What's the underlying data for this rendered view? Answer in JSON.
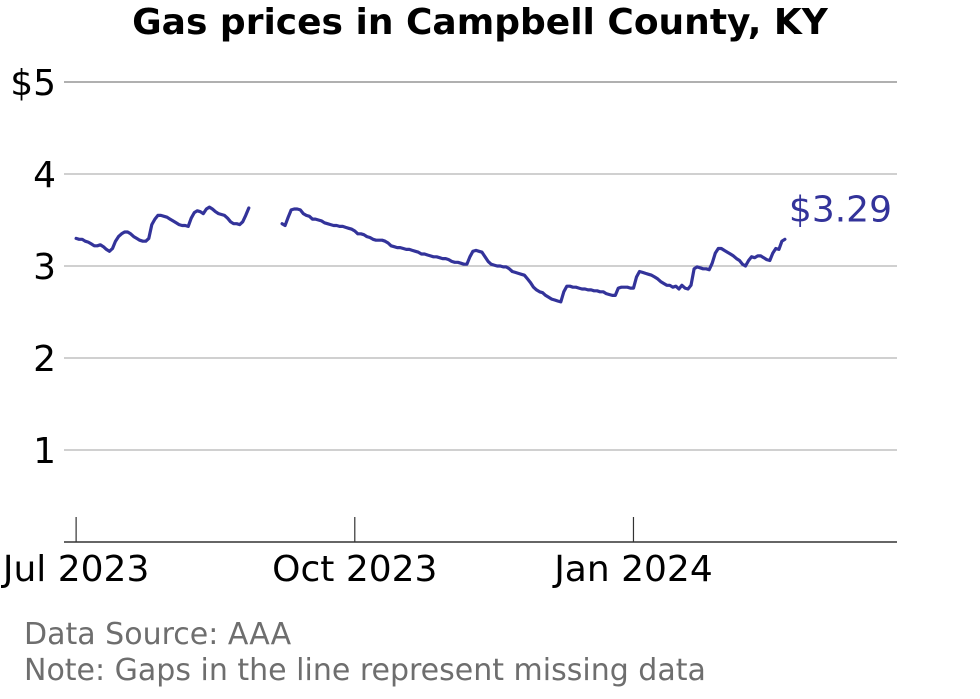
{
  "title": "Gas prices in Campbell County, KY",
  "footer": {
    "source": "Data Source: AAA",
    "note": "Note: Gaps in the line represent missing data"
  },
  "colors": {
    "line": "#33339a",
    "grid": "#b3b3b3",
    "axis": "#333333",
    "footer": "#6e6e6e"
  },
  "chart_data": {
    "type": "line",
    "title": "Gas prices in Campbell County, KY",
    "xlabel": "",
    "ylabel": "",
    "xlim": [
      "2023-06-27",
      "2024-03-28"
    ],
    "ylim": [
      0,
      5
    ],
    "y_ticks": [
      1,
      2,
      3,
      4,
      5
    ],
    "y_tick_labels": [
      "1",
      "2",
      "3",
      "4",
      "$5"
    ],
    "x_ticks": [
      "2023-07-01",
      "2023-10-01",
      "2024-01-01"
    ],
    "x_tick_labels": [
      "Jul 2023",
      "Oct 2023",
      "Jan 2024"
    ],
    "grid": true,
    "end_label": "$3.29",
    "series": [
      {
        "segments": [
          [
            [
              "2023-07-01",
              3.3
            ],
            [
              "2023-07-02",
              3.29
            ],
            [
              "2023-07-03",
              3.29
            ],
            [
              "2023-07-04",
              3.27
            ],
            [
              "2023-07-05",
              3.26
            ],
            [
              "2023-07-06",
              3.24
            ],
            [
              "2023-07-07",
              3.22
            ],
            [
              "2023-07-08",
              3.22
            ],
            [
              "2023-07-09",
              3.23
            ],
            [
              "2023-07-10",
              3.21
            ],
            [
              "2023-07-11",
              3.18
            ],
            [
              "2023-07-12",
              3.16
            ],
            [
              "2023-07-13",
              3.19
            ],
            [
              "2023-07-14",
              3.27
            ],
            [
              "2023-07-15",
              3.32
            ],
            [
              "2023-07-16",
              3.35
            ],
            [
              "2023-07-17",
              3.37
            ],
            [
              "2023-07-18",
              3.37
            ],
            [
              "2023-07-19",
              3.35
            ],
            [
              "2023-07-20",
              3.32
            ],
            [
              "2023-07-21",
              3.3
            ],
            [
              "2023-07-22",
              3.28
            ],
            [
              "2023-07-23",
              3.27
            ],
            [
              "2023-07-24",
              3.27
            ],
            [
              "2023-07-25",
              3.3
            ],
            [
              "2023-07-26",
              3.45
            ],
            [
              "2023-07-27",
              3.51
            ],
            [
              "2023-07-28",
              3.55
            ],
            [
              "2023-07-29",
              3.55
            ],
            [
              "2023-07-30",
              3.54
            ],
            [
              "2023-07-31",
              3.53
            ],
            [
              "2023-08-01",
              3.51
            ],
            [
              "2023-08-02",
              3.49
            ],
            [
              "2023-08-03",
              3.47
            ],
            [
              "2023-08-04",
              3.45
            ],
            [
              "2023-08-05",
              3.44
            ],
            [
              "2023-08-06",
              3.44
            ],
            [
              "2023-08-07",
              3.43
            ],
            [
              "2023-08-08",
              3.52
            ],
            [
              "2023-08-09",
              3.58
            ],
            [
              "2023-08-10",
              3.6
            ],
            [
              "2023-08-11",
              3.59
            ],
            [
              "2023-08-12",
              3.57
            ],
            [
              "2023-08-13",
              3.62
            ],
            [
              "2023-08-14",
              3.64
            ],
            [
              "2023-08-15",
              3.62
            ],
            [
              "2023-08-16",
              3.59
            ],
            [
              "2023-08-17",
              3.57
            ],
            [
              "2023-08-18",
              3.56
            ],
            [
              "2023-08-19",
              3.55
            ],
            [
              "2023-08-20",
              3.52
            ],
            [
              "2023-08-21",
              3.48
            ],
            [
              "2023-08-22",
              3.46
            ],
            [
              "2023-08-23",
              3.46
            ],
            [
              "2023-08-24",
              3.45
            ],
            [
              "2023-08-25",
              3.48
            ],
            [
              "2023-08-26",
              3.55
            ],
            [
              "2023-08-27",
              3.63
            ]
          ],
          [
            [
              "2023-09-07",
              3.46
            ],
            [
              "2023-09-08",
              3.44
            ],
            [
              "2023-09-09",
              3.53
            ],
            [
              "2023-09-10",
              3.61
            ],
            [
              "2023-09-11",
              3.62
            ],
            [
              "2023-09-12",
              3.62
            ],
            [
              "2023-09-13",
              3.61
            ],
            [
              "2023-09-14",
              3.57
            ],
            [
              "2023-09-15",
              3.55
            ],
            [
              "2023-09-16",
              3.54
            ],
            [
              "2023-09-17",
              3.51
            ],
            [
              "2023-09-18",
              3.51
            ],
            [
              "2023-09-19",
              3.5
            ],
            [
              "2023-09-20",
              3.49
            ],
            [
              "2023-09-21",
              3.47
            ],
            [
              "2023-09-22",
              3.46
            ],
            [
              "2023-09-23",
              3.45
            ],
            [
              "2023-09-24",
              3.44
            ],
            [
              "2023-09-25",
              3.44
            ],
            [
              "2023-09-26",
              3.43
            ],
            [
              "2023-09-27",
              3.43
            ],
            [
              "2023-09-28",
              3.42
            ],
            [
              "2023-09-29",
              3.41
            ],
            [
              "2023-09-30",
              3.4
            ],
            [
              "2023-10-01",
              3.38
            ],
            [
              "2023-10-02",
              3.35
            ],
            [
              "2023-10-03",
              3.35
            ],
            [
              "2023-10-04",
              3.34
            ],
            [
              "2023-10-05",
              3.32
            ],
            [
              "2023-10-06",
              3.31
            ],
            [
              "2023-10-07",
              3.29
            ],
            [
              "2023-10-08",
              3.28
            ],
            [
              "2023-10-09",
              3.28
            ],
            [
              "2023-10-10",
              3.28
            ],
            [
              "2023-10-11",
              3.27
            ],
            [
              "2023-10-12",
              3.25
            ],
            [
              "2023-10-13",
              3.22
            ],
            [
              "2023-10-14",
              3.21
            ],
            [
              "2023-10-15",
              3.2
            ],
            [
              "2023-10-16",
              3.2
            ],
            [
              "2023-10-17",
              3.19
            ],
            [
              "2023-10-18",
              3.18
            ],
            [
              "2023-10-19",
              3.18
            ],
            [
              "2023-10-20",
              3.17
            ],
            [
              "2023-10-21",
              3.16
            ],
            [
              "2023-10-22",
              3.15
            ],
            [
              "2023-10-23",
              3.13
            ],
            [
              "2023-10-24",
              3.13
            ],
            [
              "2023-10-25",
              3.12
            ],
            [
              "2023-10-26",
              3.11
            ],
            [
              "2023-10-27",
              3.1
            ],
            [
              "2023-10-28",
              3.1
            ],
            [
              "2023-10-29",
              3.09
            ],
            [
              "2023-10-30",
              3.08
            ],
            [
              "2023-10-31",
              3.08
            ],
            [
              "2023-11-01",
              3.07
            ],
            [
              "2023-11-02",
              3.05
            ],
            [
              "2023-11-03",
              3.04
            ],
            [
              "2023-11-04",
              3.04
            ],
            [
              "2023-11-05",
              3.03
            ],
            [
              "2023-11-06",
              3.02
            ],
            [
              "2023-11-07",
              3.02
            ],
            [
              "2023-11-08",
              3.1
            ],
            [
              "2023-11-09",
              3.16
            ],
            [
              "2023-11-10",
              3.17
            ],
            [
              "2023-11-11",
              3.16
            ],
            [
              "2023-11-12",
              3.15
            ],
            [
              "2023-11-13",
              3.1
            ],
            [
              "2023-11-14",
              3.05
            ],
            [
              "2023-11-15",
              3.02
            ],
            [
              "2023-11-16",
              3.01
            ],
            [
              "2023-11-17",
              3.0
            ],
            [
              "2023-11-18",
              3.0
            ],
            [
              "2023-11-19",
              2.99
            ],
            [
              "2023-11-20",
              2.99
            ],
            [
              "2023-11-21",
              2.97
            ],
            [
              "2023-11-22",
              2.94
            ],
            [
              "2023-11-23",
              2.93
            ],
            [
              "2023-11-24",
              2.92
            ],
            [
              "2023-11-25",
              2.91
            ],
            [
              "2023-11-26",
              2.9
            ],
            [
              "2023-11-27",
              2.86
            ],
            [
              "2023-11-28",
              2.82
            ],
            [
              "2023-11-29",
              2.77
            ],
            [
              "2023-11-30",
              2.74
            ],
            [
              "2023-12-01",
              2.72
            ],
            [
              "2023-12-02",
              2.71
            ],
            [
              "2023-12-03",
              2.68
            ],
            [
              "2023-12-04",
              2.66
            ],
            [
              "2023-12-05",
              2.64
            ],
            [
              "2023-12-06",
              2.63
            ],
            [
              "2023-12-07",
              2.62
            ],
            [
              "2023-12-08",
              2.61
            ],
            [
              "2023-12-09",
              2.72
            ],
            [
              "2023-12-10",
              2.78
            ],
            [
              "2023-12-11",
              2.78
            ],
            [
              "2023-12-12",
              2.77
            ],
            [
              "2023-12-13",
              2.77
            ],
            [
              "2023-12-14",
              2.76
            ],
            [
              "2023-12-15",
              2.75
            ],
            [
              "2023-12-16",
              2.75
            ],
            [
              "2023-12-17",
              2.74
            ],
            [
              "2023-12-18",
              2.74
            ],
            [
              "2023-12-19",
              2.73
            ],
            [
              "2023-12-20",
              2.73
            ],
            [
              "2023-12-21",
              2.72
            ],
            [
              "2023-12-22",
              2.72
            ],
            [
              "2023-12-23",
              2.7
            ],
            [
              "2023-12-24",
              2.69
            ],
            [
              "2023-12-25",
              2.68
            ],
            [
              "2023-12-26",
              2.68
            ],
            [
              "2023-12-27",
              2.76
            ],
            [
              "2023-12-28",
              2.77
            ],
            [
              "2023-12-29",
              2.77
            ],
            [
              "2023-12-30",
              2.77
            ],
            [
              "2023-12-31",
              2.76
            ],
            [
              "2024-01-01",
              2.76
            ],
            [
              "2024-01-02",
              2.88
            ],
            [
              "2024-01-03",
              2.94
            ],
            [
              "2024-01-04",
              2.93
            ],
            [
              "2024-01-05",
              2.92
            ],
            [
              "2024-01-06",
              2.91
            ],
            [
              "2024-01-07",
              2.9
            ],
            [
              "2024-01-08",
              2.88
            ],
            [
              "2024-01-09",
              2.86
            ],
            [
              "2024-01-10",
              2.83
            ],
            [
              "2024-01-11",
              2.81
            ],
            [
              "2024-01-12",
              2.79
            ],
            [
              "2024-01-13",
              2.79
            ],
            [
              "2024-01-14",
              2.77
            ],
            [
              "2024-01-15",
              2.78
            ],
            [
              "2024-01-16",
              2.75
            ],
            [
              "2024-01-17",
              2.79
            ],
            [
              "2024-01-18",
              2.76
            ],
            [
              "2024-01-19",
              2.75
            ],
            [
              "2024-01-20",
              2.79
            ],
            [
              "2024-01-21",
              2.97
            ],
            [
              "2024-01-22",
              2.99
            ],
            [
              "2024-01-23",
              2.98
            ],
            [
              "2024-01-24",
              2.97
            ],
            [
              "2024-01-25",
              2.97
            ],
            [
              "2024-01-26",
              2.96
            ],
            [
              "2024-01-27",
              3.03
            ],
            [
              "2024-01-28",
              3.14
            ],
            [
              "2024-01-29",
              3.19
            ],
            [
              "2024-01-30",
              3.19
            ],
            [
              "2024-01-31",
              3.17
            ],
            [
              "2024-02-01",
              3.15
            ],
            [
              "2024-02-02",
              3.13
            ],
            [
              "2024-02-03",
              3.11
            ],
            [
              "2024-02-04",
              3.08
            ],
            [
              "2024-02-05",
              3.06
            ],
            [
              "2024-02-06",
              3.02
            ],
            [
              "2024-02-07",
              3.0
            ],
            [
              "2024-02-08",
              3.06
            ],
            [
              "2024-02-09",
              3.1
            ],
            [
              "2024-02-10",
              3.09
            ],
            [
              "2024-02-11",
              3.11
            ],
            [
              "2024-02-12",
              3.11
            ],
            [
              "2024-02-13",
              3.09
            ],
            [
              "2024-02-14",
              3.07
            ],
            [
              "2024-02-15",
              3.06
            ],
            [
              "2024-02-16",
              3.14
            ],
            [
              "2024-02-17",
              3.19
            ],
            [
              "2024-02-18",
              3.18
            ],
            [
              "2024-02-19",
              3.27
            ],
            [
              "2024-02-20",
              3.29
            ]
          ]
        ]
      }
    ]
  }
}
